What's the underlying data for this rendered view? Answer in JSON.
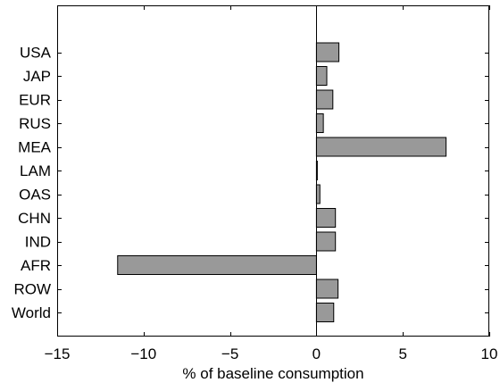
{
  "chart_data": {
    "type": "bar",
    "orientation": "horizontal",
    "categories": [
      "USA",
      "JAP",
      "EUR",
      "RUS",
      "MEA",
      "LAM",
      "OAS",
      "CHN",
      "IND",
      "AFR",
      "ROW",
      "World"
    ],
    "values": [
      1.3,
      0.6,
      0.95,
      0.4,
      7.5,
      0.05,
      0.2,
      1.1,
      1.1,
      -11.5,
      1.25,
      1.0
    ],
    "xlim": [
      -15,
      10
    ],
    "xticks": [
      -15,
      -10,
      -5,
      0,
      5,
      10
    ],
    "xtick_labels": [
      "−15",
      "−10",
      "−5",
      "0",
      "5",
      "10"
    ],
    "xlabel": "% of baseline consumption",
    "ylabel": "",
    "title": "",
    "grid": false,
    "bar_color": "#999999",
    "edge_color": "#000000"
  }
}
